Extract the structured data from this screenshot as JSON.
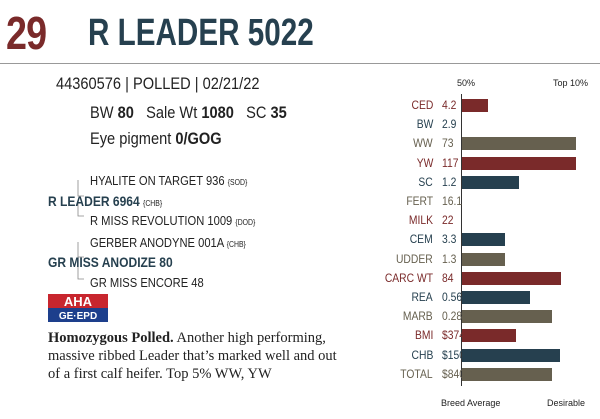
{
  "header": {
    "lot": "29",
    "name": "R LEADER 5022"
  },
  "identity": {
    "line": "44360576 | POLLED | 02/21/22"
  },
  "stats": {
    "bw_label": "BW",
    "bw_value": "80",
    "sale_label": "Sale Wt",
    "sale_value": "1080",
    "sc_label": "SC",
    "sc_value": "35",
    "eye_label": "Eye pigment",
    "eye_value": "0/GOG"
  },
  "pedigree": [
    {
      "name": "HYALITE ON TARGET 936",
      "tag": "{SOD}"
    },
    {
      "name": "R LEADER 6964",
      "tag": "{CHB}"
    },
    {
      "name": "R MISS REVOLUTION 1009",
      "tag": "{DOD}"
    },
    {
      "name": "GERBER ANODYNE 001A",
      "tag": "{CHB}"
    },
    {
      "name": "GR MISS ANODIZE 80",
      "tag": ""
    },
    {
      "name": "GR MISS ENCORE 48",
      "tag": ""
    }
  ],
  "logo": {
    "top": "AHA",
    "bottom": "GE·EPD"
  },
  "description": {
    "bold": "Homozygous Polled.",
    "text": " Another high performing, massive ribbed Leader that’s marked well and out of a first calf heifer. Top 5% WW, YW"
  },
  "chart_data": {
    "type": "bar",
    "header_left": "50%",
    "header_right": "Top 10%",
    "footer_left": "Breed Average",
    "footer_right": "Desirable",
    "colors": {
      "red": "#7a2a2a",
      "blue": "#26404f",
      "gray": "#66604f"
    },
    "rows": [
      {
        "label": "CED",
        "value": "4.2",
        "level": 0.23,
        "color": "red"
      },
      {
        "label": "BW",
        "value": "2.9",
        "level": 0,
        "color": "blue"
      },
      {
        "label": "WW",
        "value": "73",
        "level": 1.0,
        "color": "gray"
      },
      {
        "label": "YW",
        "value": "117",
        "level": 1.0,
        "color": "red"
      },
      {
        "label": "SC",
        "value": "1.2",
        "level": 0.5,
        "color": "blue"
      },
      {
        "label": "FERT",
        "value": "16.1",
        "level": 0,
        "color": "gray"
      },
      {
        "label": "MILK",
        "value": "22",
        "level": 0,
        "color": "red"
      },
      {
        "label": "CEM",
        "value": "3.3",
        "level": 0.38,
        "color": "blue"
      },
      {
        "label": "UDDER",
        "value": "1.3",
        "level": 0.38,
        "color": "gray"
      },
      {
        "label": "CARC WT",
        "value": "84",
        "level": 0.87,
        "color": "red"
      },
      {
        "label": "REA",
        "value": "0.56",
        "level": 0.6,
        "color": "blue"
      },
      {
        "label": "MARB",
        "value": "0.28",
        "level": 0.79,
        "color": "gray"
      },
      {
        "label": "BMI",
        "value": "$374",
        "level": 0.47,
        "color": "red"
      },
      {
        "label": "CHB",
        "value": "$150",
        "level": 0.86,
        "color": "blue"
      },
      {
        "label": "TOTAL",
        "value": "$840",
        "level": 0.79,
        "color": "gray"
      }
    ]
  }
}
